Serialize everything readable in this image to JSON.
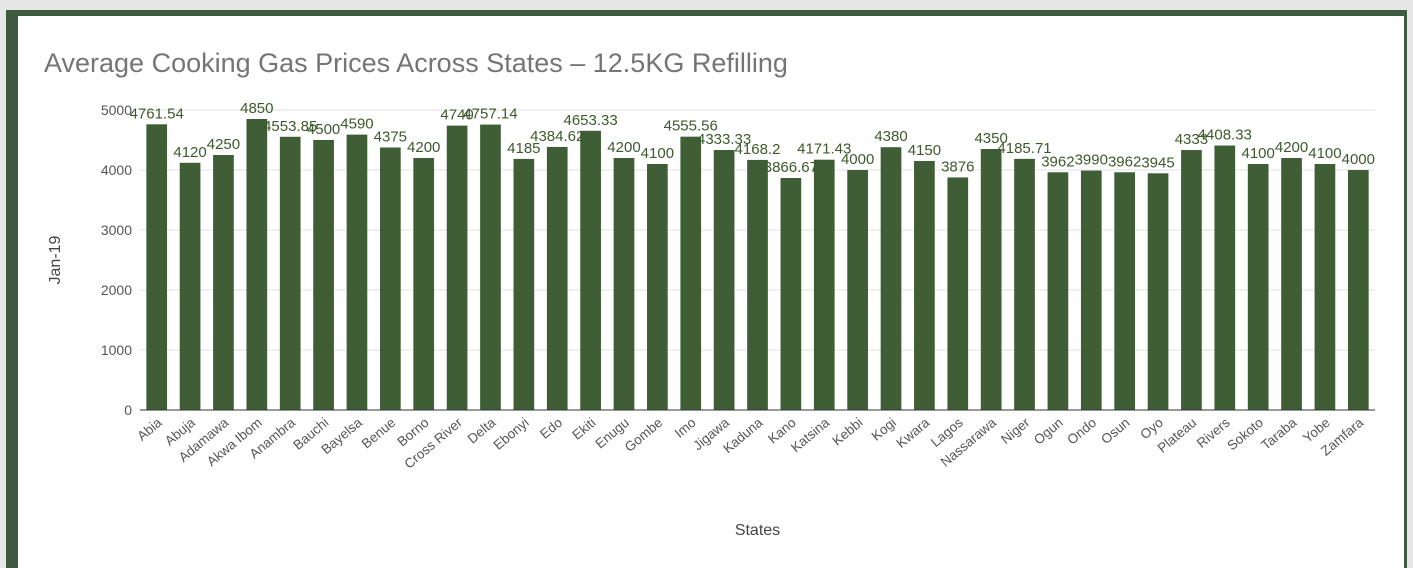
{
  "colors": {
    "frame_border": "#3d5a3e",
    "bar": "#3f5e36",
    "data_label": "#3d5a2c",
    "gridline": "#e0e0e0",
    "axis": "#333333",
    "title": "#757575"
  },
  "chart_data": {
    "type": "bar",
    "title": "Average Cooking Gas Prices Across States – 12.5KG Refilling",
    "xlabel": "States",
    "ylabel": "Jan-19",
    "ylim": [
      0,
      5000
    ],
    "yticks": [
      0,
      1000,
      2000,
      3000,
      4000,
      5000
    ],
    "grid": true,
    "legend": "none",
    "categories": [
      "Abia",
      "Abuja",
      "Adamawa",
      "Akwa Ibom",
      "Anambra",
      "Bauchi",
      "Bayelsa",
      "Benue",
      "Borno",
      "Cross River",
      "Delta",
      "Ebonyi",
      "Edo",
      "Ekiti",
      "Enugu",
      "Gombe",
      "Imo",
      "Jigawa",
      "Kaduna",
      "Kano",
      "Katsina",
      "Kebbi",
      "Kogi",
      "Kwara",
      "Lagos",
      "Nassarawa",
      "Niger",
      "Ogun",
      "Ondo",
      "Osun",
      "Oyo",
      "Plateau",
      "Rivers",
      "Sokoto",
      "Taraba",
      "Yobe",
      "Zamfara"
    ],
    "values": [
      4761.54,
      4120,
      4250,
      4850,
      4553.85,
      4500,
      4590,
      4375,
      4200,
      4740,
      4757.14,
      4185,
      4384.62,
      4653.33,
      4200,
      4100,
      4555.56,
      4333.33,
      4168.2,
      3866.67,
      4171.43,
      4000,
      4380,
      4150,
      3876,
      4350,
      4185.71,
      3962,
      3990,
      3962,
      3945,
      4333,
      4408.33,
      4100,
      4200,
      4100,
      4000
    ],
    "data_labels": [
      "4761.54",
      "4120",
      "4250",
      "4850",
      "4553.85",
      "4500",
      "4590",
      "4375",
      "4200",
      "4740",
      "4757.14",
      "4185",
      "4384.62",
      "4653.33",
      "4200",
      "4100",
      "4555.56",
      "4333.33",
      "4168.2",
      "3866.67",
      "4171.43",
      "4000",
      "4380",
      "4150",
      "3876",
      "4350",
      "4185.71",
      "3962",
      "3990",
      "3962",
      "3945",
      "4333",
      "4408.33",
      "4100",
      "4200",
      "4100",
      "4000"
    ]
  }
}
